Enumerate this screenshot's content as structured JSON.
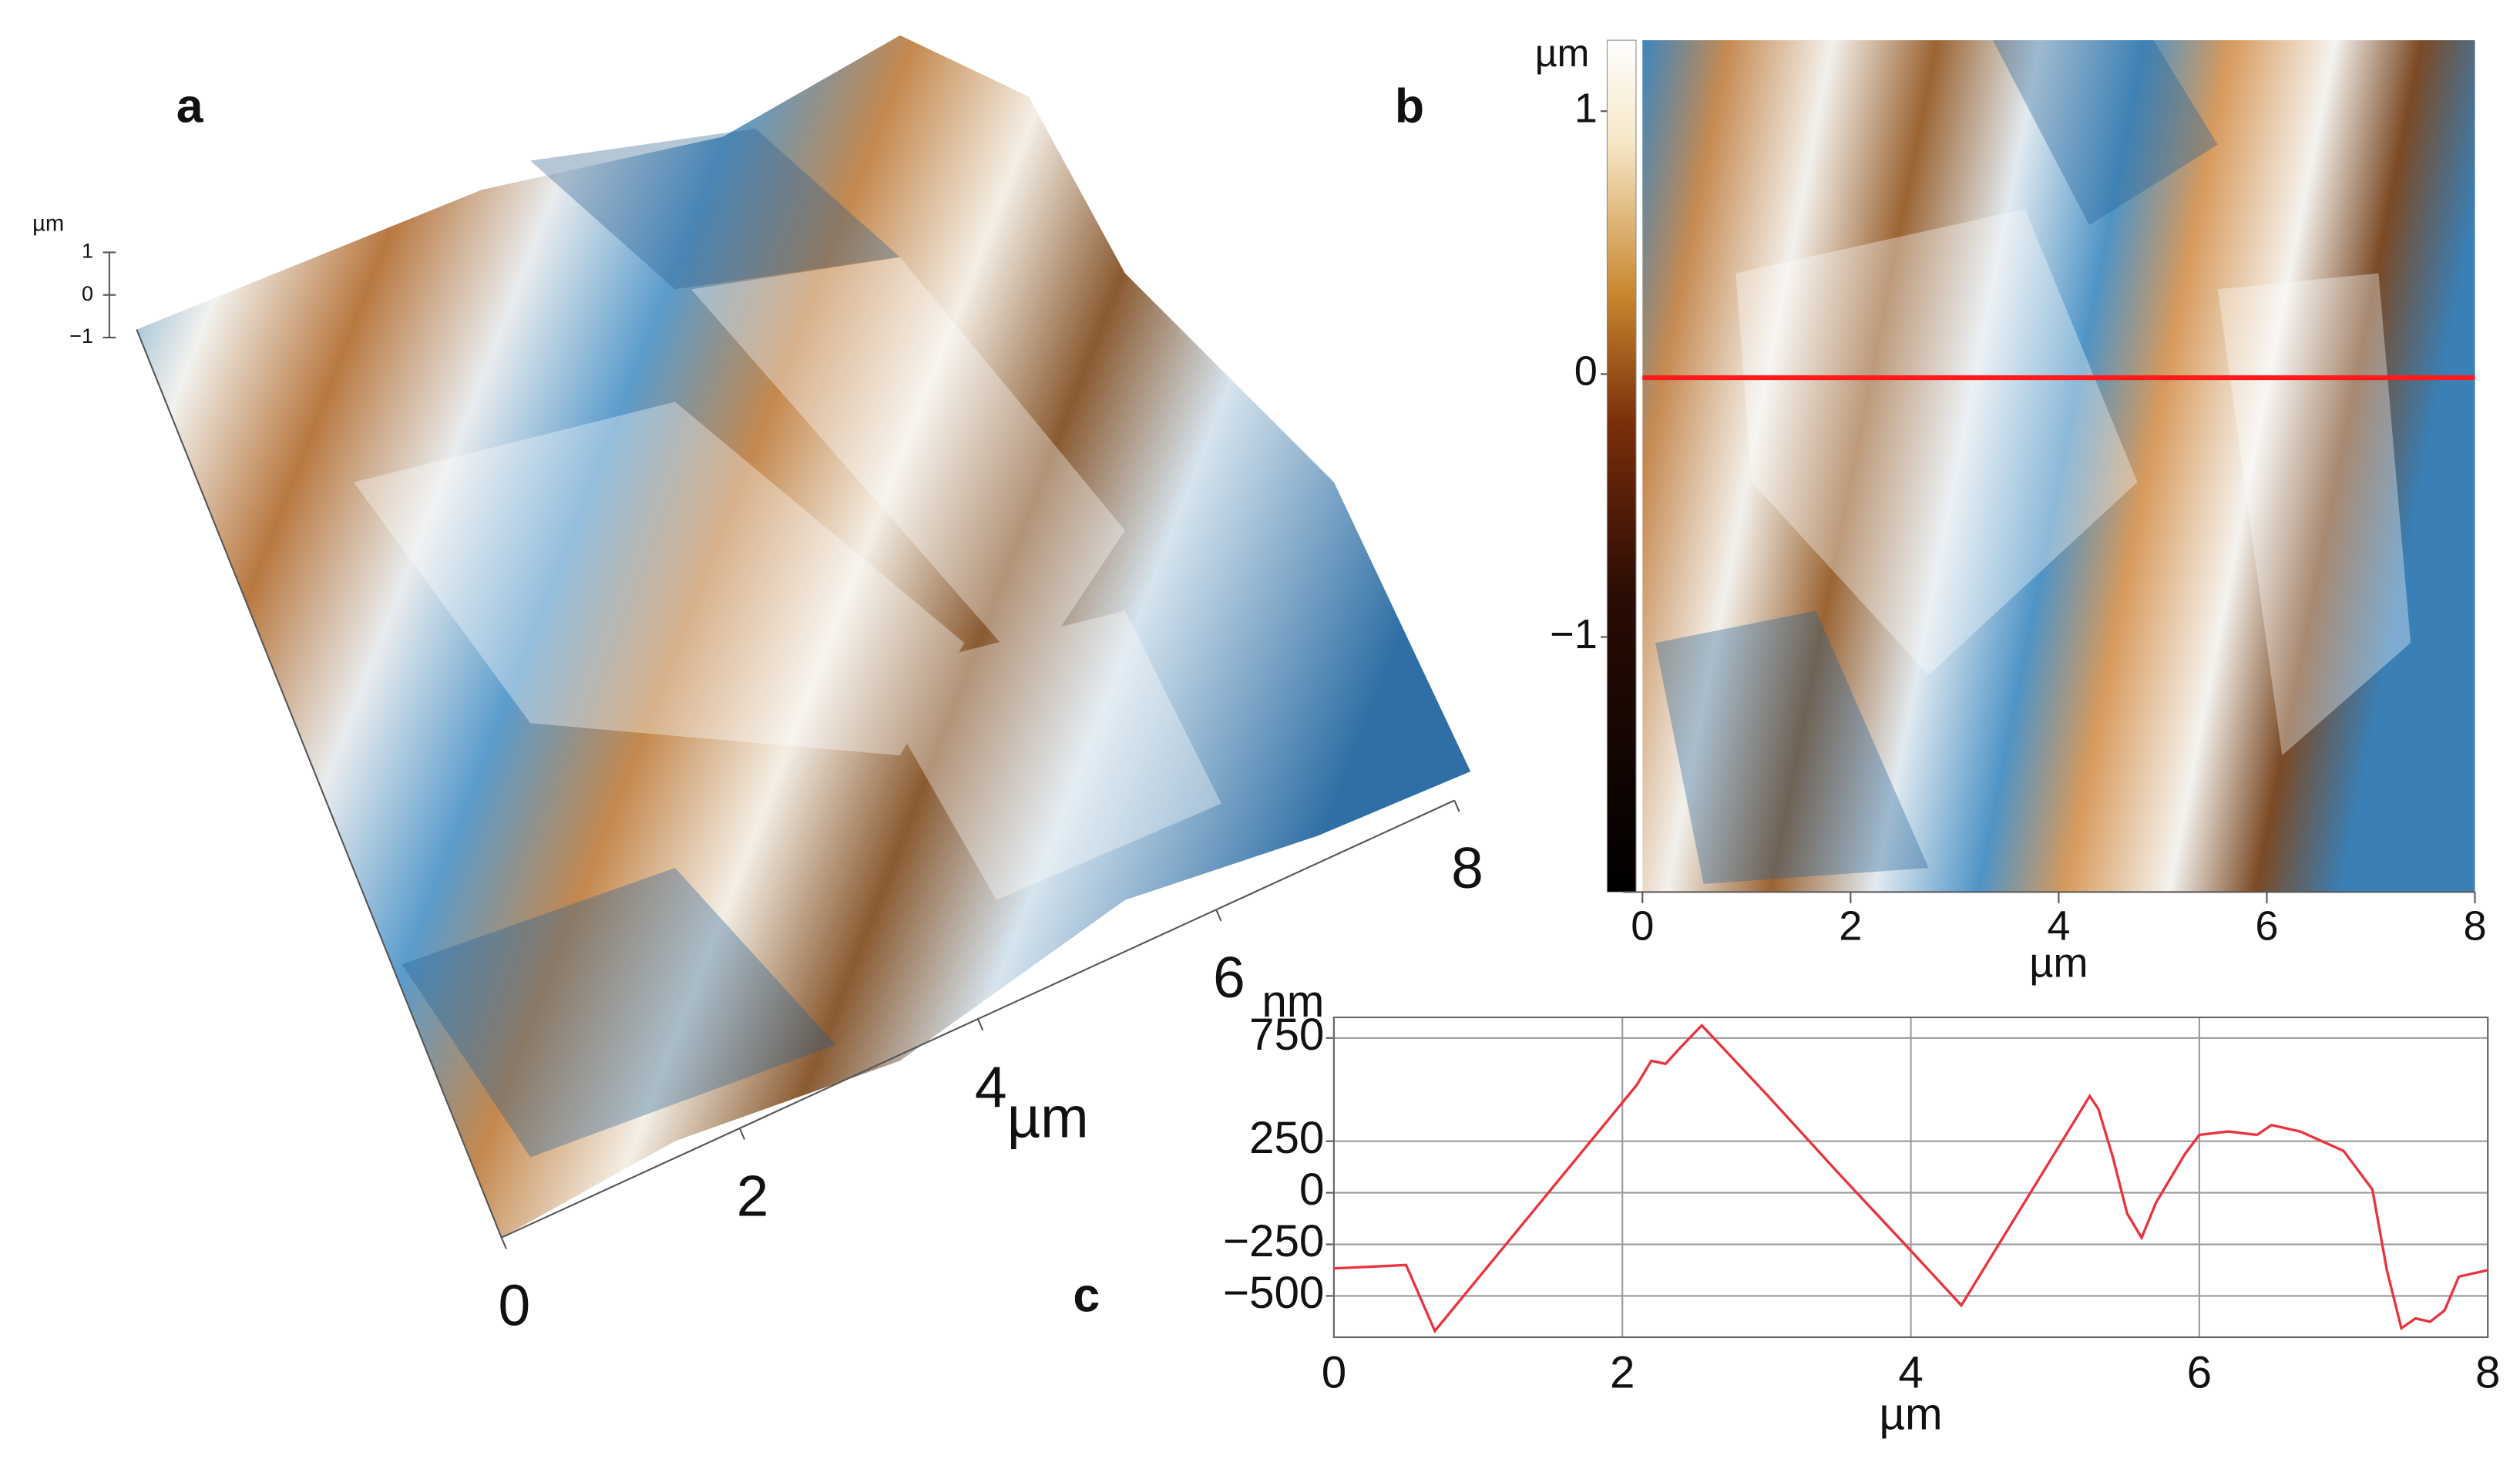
{
  "chart_data": [
    {
      "type": "surface3d",
      "panel_label": "a",
      "xlabel": "µm",
      "xlim": [
        0,
        8
      ],
      "xticks": [
        0,
        2,
        4,
        6,
        8
      ],
      "zlabel": "µm",
      "zlim": [
        -1,
        1
      ],
      "zticks": [
        1,
        0,
        {
          "value": -1,
          "label": "−1"
        }
      ]
    },
    {
      "type": "heatmap",
      "panel_label": "b",
      "xlabel": "µm",
      "xlim": [
        0,
        8
      ],
      "xticks": [
        0,
        2,
        4,
        6,
        8
      ],
      "colorbar_label": "µm",
      "colorbar_lim": [
        -1.97,
        1.27
      ],
      "colorbar_ticks": [
        1,
        0,
        {
          "value": -1,
          "label": "−1"
        }
      ]
    },
    {
      "type": "line",
      "panel_label": "c",
      "xlabel": "µm",
      "ylabel": "nm",
      "color": "#e8343c",
      "grid": true,
      "xlim": [
        0,
        8
      ],
      "ylim": [
        -700,
        850
      ],
      "xticks": [
        0,
        2,
        4,
        6,
        8
      ],
      "yticks": [
        {
          "value": -500,
          "label": "−500"
        },
        {
          "value": -250,
          "label": "−250"
        },
        0,
        250,
        750
      ],
      "x": [
        0,
        0.5,
        0.7,
        2.0,
        2.1,
        2.2,
        2.3,
        2.4,
        2.55,
        3.0,
        3.5,
        4.0,
        4.35,
        5.24,
        5.3,
        5.4,
        5.5,
        5.6,
        5.7,
        5.9,
        6.0,
        6.2,
        6.4,
        6.5,
        6.7,
        7.0,
        7.2,
        7.3,
        7.4,
        7.5,
        7.6,
        7.7,
        7.8,
        8.0
      ],
      "values": [
        -367,
        -350,
        -670,
        437,
        523,
        640,
        625,
        702,
        811,
        476,
        94,
        -281,
        -546,
        468,
        406,
        172,
        -101,
        -218,
        -47,
        187,
        281,
        297,
        281,
        328,
        297,
        203,
        16,
        -375,
        -656,
        -609,
        -625,
        -570,
        -406,
        -375
      ]
    }
  ]
}
